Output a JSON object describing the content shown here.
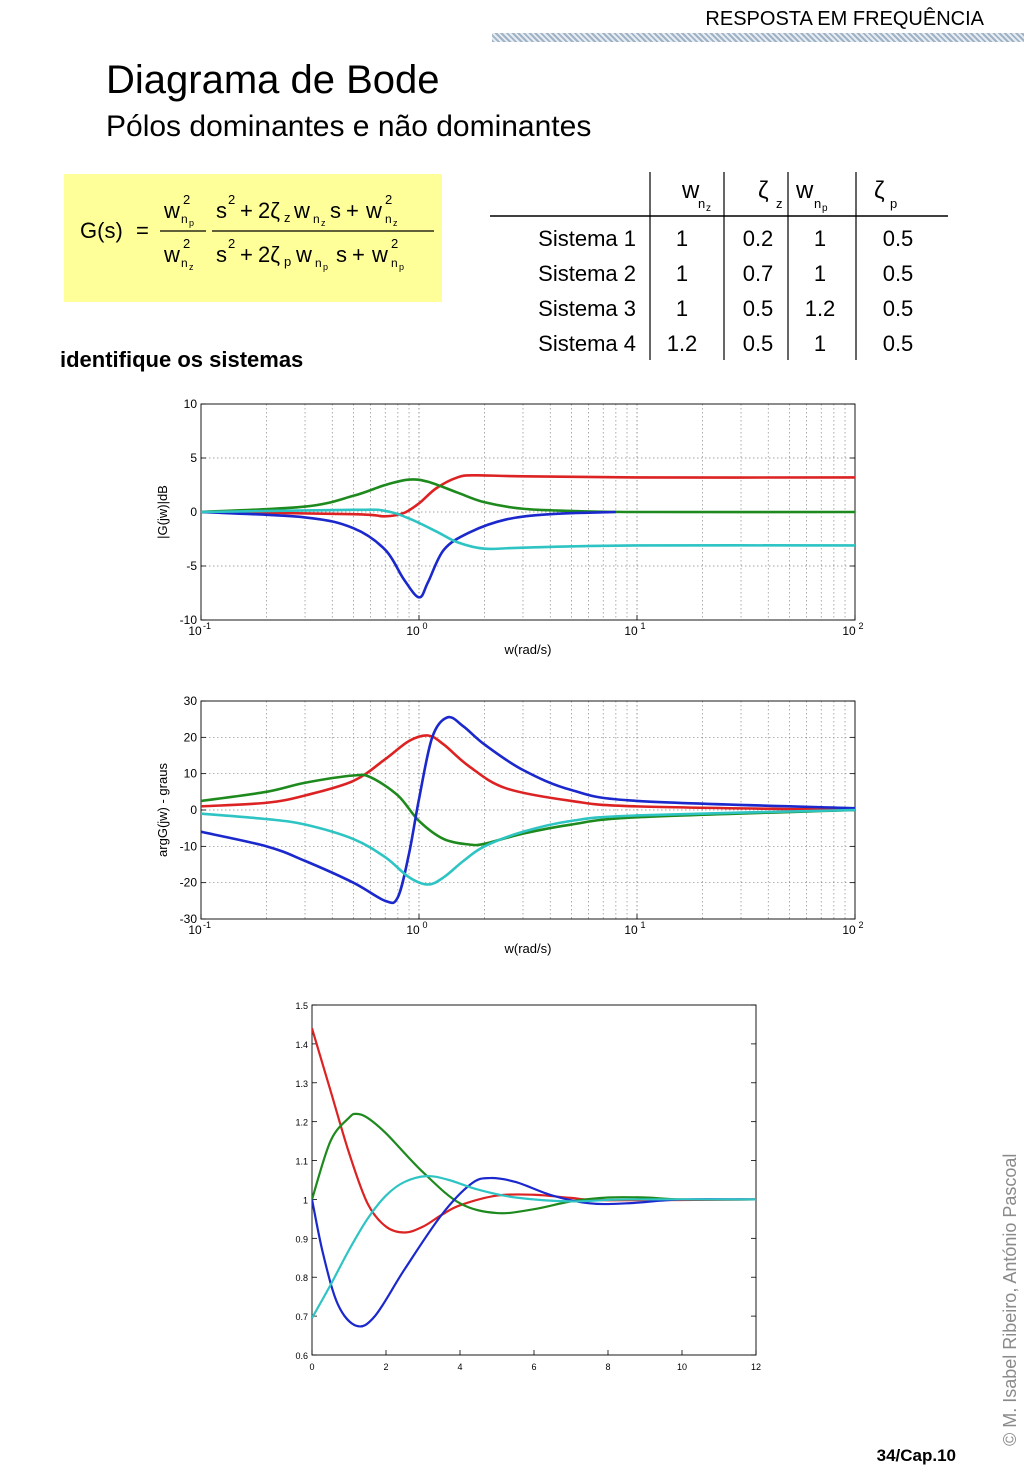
{
  "header": {
    "section": "RESPOSTA EM FREQUÊNCIA"
  },
  "slide": {
    "title": "Diagrama de Bode",
    "subtitle": "Pólos dominantes e não dominantes",
    "hint": "identifique os sistemas"
  },
  "formula": {
    "lhs": "G(s)",
    "eq": "=",
    "plus": "+"
  },
  "table": {
    "headers": [
      "w",
      "ζ",
      "w",
      "ζ"
    ],
    "header_subs": [
      "n",
      "z",
      "n",
      "p"
    ],
    "rows": [
      {
        "label": "Sistema 1",
        "values": [
          "1",
          "0.2",
          "1",
          "0.5"
        ]
      },
      {
        "label": "Sistema 2",
        "values": [
          "1",
          "0.7",
          "1",
          "0.5"
        ]
      },
      {
        "label": "Sistema 3",
        "values": [
          "1",
          "0.5",
          "1.2",
          "0.5"
        ]
      },
      {
        "label": "Sistema 4",
        "values": [
          "1.2",
          "0.5",
          "1",
          "0.5"
        ]
      }
    ]
  },
  "colors": {
    "red": "#dc2222",
    "green": "#1e8a1e",
    "blue": "#1a28cc",
    "cyan": "#2ec4c4",
    "formula_bg": "#ffff99"
  },
  "chart_data": [
    {
      "type": "line",
      "xlabel": "w(rad/s)",
      "ylabel": "|G(jw)|dB",
      "xscale": "log",
      "xlim": [
        0.1,
        100
      ],
      "ylim": [
        -10,
        10
      ],
      "yticks": [
        "10",
        "5",
        "0",
        "-5",
        "-10"
      ],
      "xticks": [
        "10",
        "10",
        "10",
        "10"
      ],
      "xtick_exps": [
        "-1",
        "0",
        "1",
        "2"
      ],
      "grid": true,
      "series": [
        {
          "color": "red",
          "points": [
            [
              0.1,
              0
            ],
            [
              0.5,
              -0.2
            ],
            [
              0.7,
              -0.4
            ],
            [
              0.85,
              -0.1
            ],
            [
              1,
              0.8
            ],
            [
              1.2,
              2.2
            ],
            [
              1.5,
              3.2
            ],
            [
              1.8,
              3.4
            ],
            [
              3,
              3.3
            ],
            [
              10,
              3.2
            ],
            [
              100,
              3.2
            ]
          ]
        },
        {
          "color": "green",
          "points": [
            [
              0.1,
              0
            ],
            [
              0.3,
              0.5
            ],
            [
              0.5,
              1.5
            ],
            [
              0.7,
              2.5
            ],
            [
              0.9,
              3
            ],
            [
              1.1,
              2.8
            ],
            [
              1.5,
              1.8
            ],
            [
              2,
              0.9
            ],
            [
              3,
              0.3
            ],
            [
              5,
              0.1
            ],
            [
              10,
              0
            ],
            [
              100,
              0
            ]
          ]
        },
        {
          "color": "blue",
          "points": [
            [
              0.1,
              0
            ],
            [
              0.3,
              -0.5
            ],
            [
              0.5,
              -1.5
            ],
            [
              0.7,
              -3.5
            ],
            [
              0.85,
              -6.2
            ],
            [
              1,
              -7.9
            ],
            [
              1.1,
              -6.5
            ],
            [
              1.3,
              -3.5
            ],
            [
              1.7,
              -1.9
            ],
            [
              2.5,
              -0.7
            ],
            [
              4,
              -0.2
            ],
            [
              8,
              0
            ]
          ]
        },
        {
          "color": "cyan",
          "points": [
            [
              0.1,
              0
            ],
            [
              0.5,
              0.2
            ],
            [
              0.7,
              0.1
            ],
            [
              0.9,
              -0.6
            ],
            [
              1.2,
              -1.8
            ],
            [
              1.5,
              -2.8
            ],
            [
              2,
              -3.4
            ],
            [
              3,
              -3.3
            ],
            [
              10,
              -3.1
            ],
            [
              100,
              -3.1
            ]
          ]
        }
      ]
    },
    {
      "type": "line",
      "xlabel": "w(rad/s)",
      "ylabel": "argG(jw) - graus",
      "xscale": "log",
      "xlim": [
        0.1,
        100
      ],
      "ylim": [
        -30,
        30
      ],
      "yticks": [
        "30",
        "20",
        "10",
        "0",
        "-10",
        "-20",
        "-30"
      ],
      "xticks": [
        "10",
        "10",
        "10",
        "10"
      ],
      "xtick_exps": [
        "-1",
        "0",
        "1",
        "2"
      ],
      "grid": true,
      "series": [
        {
          "color": "red",
          "points": [
            [
              0.1,
              1
            ],
            [
              0.2,
              2
            ],
            [
              0.3,
              4
            ],
            [
              0.5,
              8
            ],
            [
              0.7,
              14
            ],
            [
              0.9,
              19
            ],
            [
              1.1,
              20.5
            ],
            [
              1.3,
              18
            ],
            [
              1.7,
              12
            ],
            [
              2.5,
              6
            ],
            [
              5,
              2.5
            ],
            [
              10,
              1
            ],
            [
              100,
              0
            ]
          ]
        },
        {
          "color": "green",
          "points": [
            [
              0.1,
              2.5
            ],
            [
              0.2,
              5
            ],
            [
              0.3,
              7.5
            ],
            [
              0.5,
              9.5
            ],
            [
              0.6,
              9
            ],
            [
              0.8,
              4
            ],
            [
              1,
              -3
            ],
            [
              1.3,
              -8
            ],
            [
              1.7,
              -9.5
            ],
            [
              2,
              -9.3
            ],
            [
              3,
              -6.5
            ],
            [
              5,
              -4
            ],
            [
              10,
              -2
            ],
            [
              100,
              0
            ]
          ]
        },
        {
          "color": "blue",
          "points": [
            [
              0.1,
              -6
            ],
            [
              0.2,
              -10
            ],
            [
              0.3,
              -14
            ],
            [
              0.5,
              -20
            ],
            [
              0.7,
              -25
            ],
            [
              0.8,
              -24
            ],
            [
              0.9,
              -12
            ],
            [
              1,
              3
            ],
            [
              1.15,
              20
            ],
            [
              1.35,
              25.5
            ],
            [
              1.6,
              23
            ],
            [
              2,
              18
            ],
            [
              3,
              11
            ],
            [
              5,
              5.5
            ],
            [
              10,
              2.5
            ],
            [
              100,
              0.5
            ]
          ]
        },
        {
          "color": "cyan",
          "points": [
            [
              0.1,
              -1
            ],
            [
              0.2,
              -2.5
            ],
            [
              0.3,
              -4
            ],
            [
              0.5,
              -8
            ],
            [
              0.7,
              -13
            ],
            [
              0.9,
              -18.5
            ],
            [
              1.1,
              -20.5
            ],
            [
              1.3,
              -18.5
            ],
            [
              1.6,
              -14
            ],
            [
              2,
              -10
            ],
            [
              3,
              -6
            ],
            [
              5,
              -3
            ],
            [
              10,
              -1.5
            ],
            [
              100,
              0
            ]
          ]
        }
      ]
    },
    {
      "type": "line",
      "xlim": [
        0,
        12
      ],
      "ylim": [
        0.6,
        1.5
      ],
      "yticks": [
        "1.5",
        "1.4",
        "1.3",
        "1.2",
        "1.1",
        "1",
        "0.9",
        "0.8",
        "0.7",
        "0.6"
      ],
      "xticks": [
        "0",
        "2",
        "4",
        "6",
        "8",
        "10",
        "12"
      ],
      "grid": false,
      "series": [
        {
          "color": "red",
          "points": [
            [
              0,
              1.44
            ],
            [
              0.5,
              1.28
            ],
            [
              1,
              1.12
            ],
            [
              1.5,
              0.99
            ],
            [
              2,
              0.93
            ],
            [
              2.5,
              0.915
            ],
            [
              3,
              0.93
            ],
            [
              3.5,
              0.96
            ],
            [
              4,
              0.985
            ],
            [
              5,
              1.01
            ],
            [
              6,
              1.012
            ],
            [
              7,
              1.004
            ],
            [
              8,
              0.998
            ],
            [
              12,
              1
            ]
          ]
        },
        {
          "color": "green",
          "points": [
            [
              0,
              1
            ],
            [
              0.5,
              1.15
            ],
            [
              1,
              1.21
            ],
            [
              1.2,
              1.22
            ],
            [
              1.5,
              1.21
            ],
            [
              2,
              1.17
            ],
            [
              3,
              1.07
            ],
            [
              4,
              0.99
            ],
            [
              5,
              0.965
            ],
            [
              6,
              0.975
            ],
            [
              7,
              0.995
            ],
            [
              8,
              1.005
            ],
            [
              9,
              1.005
            ],
            [
              10,
              1
            ],
            [
              12,
              1
            ]
          ]
        },
        {
          "color": "blue",
          "points": [
            [
              0,
              1
            ],
            [
              0.3,
              0.86
            ],
            [
              0.7,
              0.73
            ],
            [
              1.2,
              0.675
            ],
            [
              1.7,
              0.7
            ],
            [
              2.5,
              0.82
            ],
            [
              3.5,
              0.96
            ],
            [
              4.3,
              1.04
            ],
            [
              4.8,
              1.055
            ],
            [
              5.5,
              1.045
            ],
            [
              6.5,
              1.01
            ],
            [
              7.5,
              0.99
            ],
            [
              8.5,
              0.99
            ],
            [
              10,
              1
            ],
            [
              12,
              1
            ]
          ]
        },
        {
          "color": "cyan",
          "points": [
            [
              0,
              0.695
            ],
            [
              0.5,
              0.78
            ],
            [
              1,
              0.87
            ],
            [
              1.5,
              0.95
            ],
            [
              2,
              1.01
            ],
            [
              2.5,
              1.045
            ],
            [
              3.1,
              1.06
            ],
            [
              3.7,
              1.05
            ],
            [
              4.5,
              1.025
            ],
            [
              5.5,
              1.005
            ],
            [
              7,
              0.995
            ],
            [
              8.5,
              1
            ],
            [
              12,
              1
            ]
          ]
        }
      ]
    }
  ],
  "footer": {
    "copyright": "© M. Isabel Ribeiro, António Pascoal",
    "page": "34/Cap.10"
  }
}
